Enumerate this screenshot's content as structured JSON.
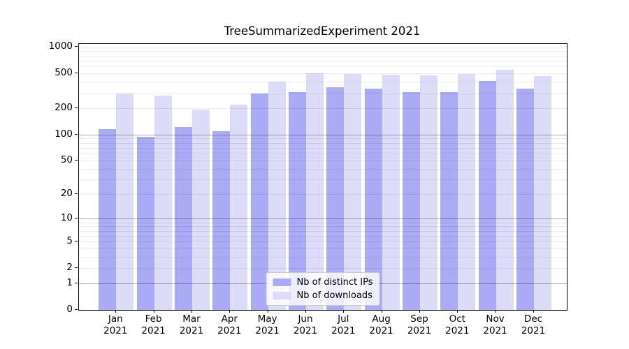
{
  "chart_data": {
    "type": "bar",
    "title": "TreeSummarizedExperiment 2021",
    "categories": [
      "Jan 2021",
      "Feb 2021",
      "Mar 2021",
      "Apr 2021",
      "May 2021",
      "Jun 2021",
      "Jul 2021",
      "Aug 2021",
      "Sep 2021",
      "Oct 2021",
      "Nov 2021",
      "Dec 2021"
    ],
    "series": [
      {
        "name": "Nb of distinct IPs",
        "color": "#aaaaf5",
        "values": [
          115,
          94,
          122,
          109,
          297,
          307,
          350,
          336,
          306,
          305,
          413,
          337
        ]
      },
      {
        "name": "Nb of downloads",
        "color": "#dcdcf8",
        "values": [
          292,
          280,
          194,
          219,
          403,
          506,
          496,
          483,
          474,
          490,
          546,
          466
        ]
      }
    ],
    "xlabel": "",
    "ylabel": "",
    "y_scale": "log10(value+1), 0 at baseline",
    "y_tick_values": [
      1000,
      500,
      200,
      100,
      50,
      20,
      10,
      5,
      2,
      1,
      0
    ],
    "y_major_gridlines": [
      1,
      10,
      100
    ],
    "ylim": [
      0,
      1090
    ],
    "grid": "horizontal, drawn over bars",
    "legend_position": "lower center"
  }
}
